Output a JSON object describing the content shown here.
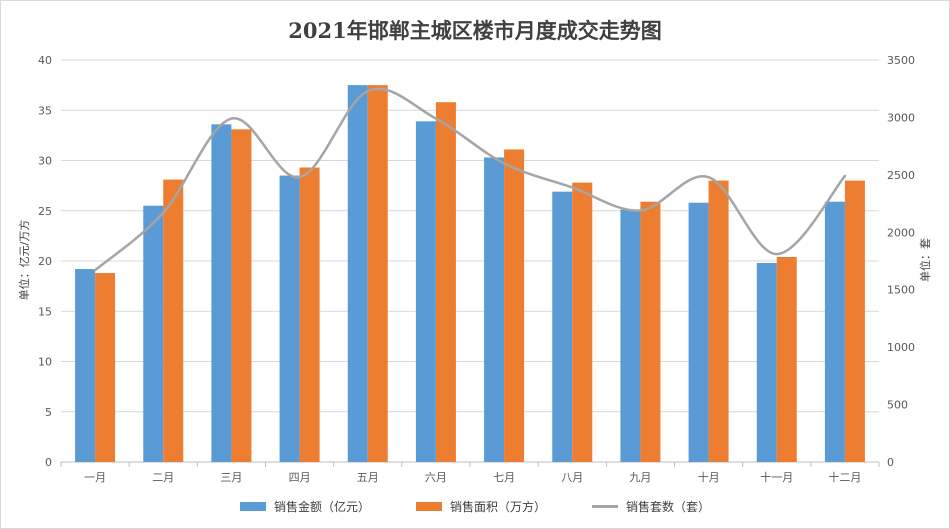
{
  "chart_data": {
    "type": "bar",
    "title": "2021年邯郸主城区楼市月度成交走势图",
    "categories": [
      "一月",
      "二月",
      "三月",
      "四月",
      "五月",
      "六月",
      "七月",
      "八月",
      "九月",
      "十月",
      "十一月",
      "十二月"
    ],
    "series": [
      {
        "name": "销售金额（亿元）",
        "type": "bar",
        "axis": "left",
        "color": "#5b9bd5",
        "values": [
          19.2,
          25.5,
          33.6,
          28.5,
          37.5,
          33.9,
          30.3,
          26.9,
          25.1,
          25.8,
          19.8,
          25.9
        ]
      },
      {
        "name": "销售面积（万方）",
        "type": "bar",
        "axis": "left",
        "color": "#ed7d31",
        "values": [
          18.8,
          28.1,
          33.1,
          29.3,
          37.5,
          35.8,
          31.1,
          27.8,
          25.9,
          28.0,
          20.4,
          28.0
        ]
      },
      {
        "name": "销售套数（套）",
        "type": "line",
        "smooth": true,
        "axis": "right",
        "color": "#a5a5a5",
        "values": [
          1670,
          2170,
          2990,
          2480,
          3230,
          2990,
          2600,
          2390,
          2190,
          2480,
          1810,
          2490
        ]
      }
    ],
    "ylabel_left": "单位：亿元/万方",
    "ylabel_right": "单位：套",
    "ylim_left": [
      0,
      40
    ],
    "yticks_left": [
      "0",
      "5",
      "10",
      "15",
      "20",
      "25",
      "30",
      "35",
      "40"
    ],
    "ylim_right": [
      0,
      3500
    ],
    "yticks_right": [
      "0",
      "500",
      "1000",
      "1500",
      "2000",
      "2500",
      "3000",
      "3500"
    ],
    "grid": true,
    "legend_position": "bottom"
  }
}
